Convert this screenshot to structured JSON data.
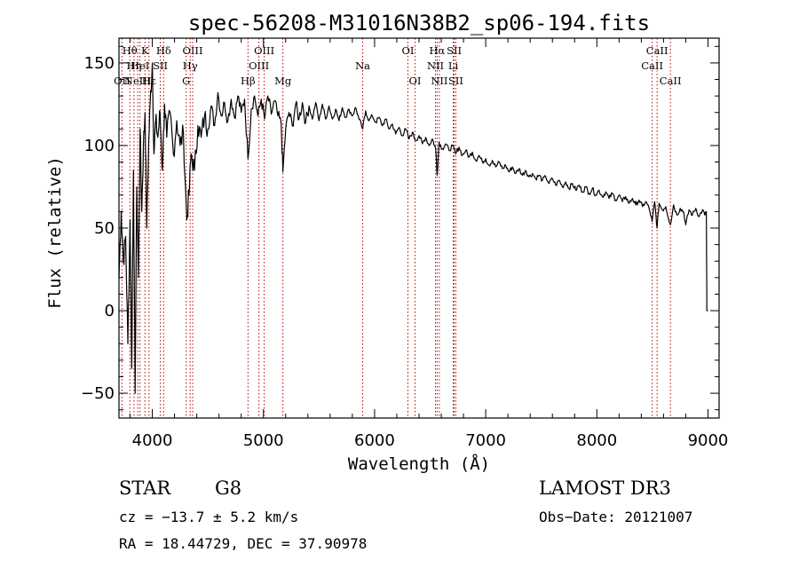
{
  "chart_data": {
    "type": "line",
    "title": "spec-56208-M31016N38B2_sp06-194.fits",
    "xlabel": "Wavelength (Å)",
    "ylabel": "Flux (relative)",
    "xlim": [
      3700,
      9100
    ],
    "ylim": [
      -65,
      165
    ],
    "xticks": [
      4000,
      5000,
      6000,
      7000,
      8000,
      9000
    ],
    "yticks": [
      -50,
      0,
      50,
      100,
      150
    ],
    "series": [
      {
        "name": "flux",
        "points": [
          [
            3700,
            20
          ],
          [
            3720,
            60
          ],
          [
            3740,
            30
          ],
          [
            3760,
            45
          ],
          [
            3780,
            -20
          ],
          [
            3800,
            55
          ],
          [
            3815,
            -35
          ],
          [
            3830,
            85
          ],
          [
            3845,
            -50
          ],
          [
            3860,
            75
          ],
          [
            3875,
            20
          ],
          [
            3890,
            110
          ],
          [
            3905,
            60
          ],
          [
            3920,
            100
          ],
          [
            3935,
            120
          ],
          [
            3950,
            50
          ],
          [
            3965,
            95
          ],
          [
            3980,
            125
          ],
          [
            4000,
            150
          ],
          [
            4015,
            95
          ],
          [
            4030,
            115
          ],
          [
            4050,
            105
          ],
          [
            4070,
            120
          ],
          [
            4090,
            85
          ],
          [
            4110,
            125
          ],
          [
            4130,
            105
          ],
          [
            4160,
            120
          ],
          [
            4190,
            95
          ],
          [
            4220,
            115
          ],
          [
            4250,
            100
          ],
          [
            4280,
            108
          ],
          [
            4310,
            55
          ],
          [
            4330,
            70
          ],
          [
            4350,
            95
          ],
          [
            4380,
            85
          ],
          [
            4410,
            112
          ],
          [
            4440,
            105
          ],
          [
            4470,
            118
          ],
          [
            4500,
            110
          ],
          [
            4530,
            124
          ],
          [
            4560,
            112
          ],
          [
            4590,
            132
          ],
          [
            4620,
            118
          ],
          [
            4650,
            126
          ],
          [
            4680,
            115
          ],
          [
            4710,
            128
          ],
          [
            4740,
            117
          ],
          [
            4770,
            130
          ],
          [
            4800,
            120
          ],
          [
            4830,
            128
          ],
          [
            4861,
            92
          ],
          [
            4890,
            122
          ],
          [
            4920,
            130
          ],
          [
            4950,
            118
          ],
          [
            4980,
            128
          ],
          [
            5010,
            116
          ],
          [
            5040,
            130
          ],
          [
            5070,
            119
          ],
          [
            5100,
            127
          ],
          [
            5130,
            118
          ],
          [
            5160,
            113
          ],
          [
            5175,
            84
          ],
          [
            5200,
            110
          ],
          [
            5230,
            120
          ],
          [
            5260,
            112
          ],
          [
            5290,
            125
          ],
          [
            5320,
            116
          ],
          [
            5350,
            126
          ],
          [
            5380,
            114
          ],
          [
            5410,
            124
          ],
          [
            5440,
            116
          ],
          [
            5470,
            126
          ],
          [
            5500,
            115
          ],
          [
            5530,
            125
          ],
          [
            5560,
            116
          ],
          [
            5590,
            124
          ],
          [
            5620,
            116
          ],
          [
            5650,
            122
          ],
          [
            5680,
            115
          ],
          [
            5710,
            123
          ],
          [
            5740,
            117
          ],
          [
            5770,
            122
          ],
          [
            5800,
            118
          ],
          [
            5830,
            123
          ],
          [
            5860,
            116
          ],
          [
            5893,
            110
          ],
          [
            5920,
            121
          ],
          [
            5950,
            115
          ],
          [
            5980,
            118
          ],
          [
            6010,
            114
          ],
          [
            6040,
            117
          ],
          [
            6070,
            112
          ],
          [
            6100,
            116
          ],
          [
            6130,
            110
          ],
          [
            6160,
            113
          ],
          [
            6190,
            107
          ],
          [
            6220,
            111
          ],
          [
            6250,
            106
          ],
          [
            6280,
            110
          ],
          [
            6310,
            104
          ],
          [
            6340,
            108
          ],
          [
            6370,
            103
          ],
          [
            6400,
            106
          ],
          [
            6430,
            101
          ],
          [
            6460,
            105
          ],
          [
            6490,
            100
          ],
          [
            6520,
            104
          ],
          [
            6550,
            98
          ],
          [
            6563,
            82
          ],
          [
            6580,
            102
          ],
          [
            6610,
            98
          ],
          [
            6640,
            101
          ],
          [
            6670,
            97
          ],
          [
            6700,
            100
          ],
          [
            6730,
            95
          ],
          [
            6760,
            99
          ],
          [
            6790,
            94
          ],
          [
            6820,
            97
          ],
          [
            6850,
            93
          ],
          [
            6880,
            96
          ],
          [
            6910,
            91
          ],
          [
            6940,
            94
          ],
          [
            6970,
            90
          ],
          [
            7000,
            92
          ],
          [
            7030,
            88
          ],
          [
            7060,
            91
          ],
          [
            7090,
            87
          ],
          [
            7120,
            90
          ],
          [
            7150,
            86
          ],
          [
            7180,
            88
          ],
          [
            7210,
            84
          ],
          [
            7240,
            87
          ],
          [
            7270,
            83
          ],
          [
            7300,
            86
          ],
          [
            7330,
            82
          ],
          [
            7360,
            85
          ],
          [
            7390,
            81
          ],
          [
            7420,
            83
          ],
          [
            7450,
            80
          ],
          [
            7480,
            82
          ],
          [
            7510,
            79
          ],
          [
            7540,
            81
          ],
          [
            7570,
            77
          ],
          [
            7600,
            80
          ],
          [
            7630,
            76
          ],
          [
            7660,
            79
          ],
          [
            7690,
            75
          ],
          [
            7720,
            78
          ],
          [
            7750,
            74
          ],
          [
            7780,
            77
          ],
          [
            7810,
            73
          ],
          [
            7840,
            76
          ],
          [
            7870,
            72
          ],
          [
            7900,
            75
          ],
          [
            7930,
            71
          ],
          [
            7960,
            74
          ],
          [
            7990,
            70
          ],
          [
            8020,
            73
          ],
          [
            8050,
            69
          ],
          [
            8080,
            72
          ],
          [
            8110,
            68
          ],
          [
            8140,
            71
          ],
          [
            8170,
            67
          ],
          [
            8200,
            70
          ],
          [
            8230,
            66
          ],
          [
            8260,
            69
          ],
          [
            8290,
            65
          ],
          [
            8320,
            68
          ],
          [
            8350,
            64
          ],
          [
            8380,
            67
          ],
          [
            8410,
            63
          ],
          [
            8440,
            66
          ],
          [
            8470,
            62
          ],
          [
            8498,
            54
          ],
          [
            8520,
            66
          ],
          [
            8542,
            50
          ],
          [
            8560,
            65
          ],
          [
            8590,
            61
          ],
          [
            8620,
            63
          ],
          [
            8662,
            52
          ],
          [
            8690,
            64
          ],
          [
            8720,
            58
          ],
          [
            8750,
            62
          ],
          [
            8780,
            60
          ],
          [
            8800,
            52
          ],
          [
            8830,
            61
          ],
          [
            8860,
            58
          ],
          [
            8890,
            62
          ],
          [
            8920,
            57
          ],
          [
            8950,
            61
          ],
          [
            8970,
            58
          ],
          [
            8985,
            60
          ],
          [
            8990,
            0
          ]
        ]
      }
    ],
    "lines": [
      {
        "w": 3727,
        "label": "OII",
        "row": 3
      },
      {
        "w": 3798,
        "label": "Hθ",
        "row": 1
      },
      {
        "w": 3835,
        "label": "Hη",
        "row": 2
      },
      {
        "w": 3869,
        "label": "NeIII",
        "row": 3
      },
      {
        "w": 3889,
        "label": "HeI",
        "row": 2
      },
      {
        "w": 3934,
        "label": "K",
        "row": 1
      },
      {
        "w": 3970,
        "label": "Hε",
        "row": 3
      },
      {
        "w": 4072,
        "label": "SII",
        "row": 2
      },
      {
        "w": 4102,
        "label": "Hδ",
        "row": 1
      },
      {
        "w": 4305,
        "label": "G",
        "row": 3
      },
      {
        "w": 4341,
        "label": "Hγ",
        "row": 2
      },
      {
        "w": 4363,
        "label": "OIII",
        "row": 1
      },
      {
        "w": 4861,
        "label": "Hβ",
        "row": 3
      },
      {
        "w": 4959,
        "label": "OIII",
        "row": 2
      },
      {
        "w": 5007,
        "label": "OIII",
        "row": 1
      },
      {
        "w": 5175,
        "label": "Mg",
        "row": 3
      },
      {
        "w": 5893,
        "label": "Na",
        "row": 2
      },
      {
        "w": 6300,
        "label": "OI",
        "row": 1
      },
      {
        "w": 6364,
        "label": "OI",
        "row": 3
      },
      {
        "w": 6548,
        "label": "NII",
        "row": 2
      },
      {
        "w": 6563,
        "label": "Hα",
        "row": 1
      },
      {
        "w": 6583,
        "label": "NII",
        "row": 3
      },
      {
        "w": 6708,
        "label": "Li",
        "row": 2
      },
      {
        "w": 6716,
        "label": "SII",
        "row": 1
      },
      {
        "w": 6731,
        "label": "SII",
        "row": 3
      },
      {
        "w": 8498,
        "label": "CaII",
        "row": 2
      },
      {
        "w": 8542,
        "label": "CaII",
        "row": 1
      },
      {
        "w": 8662,
        "label": "CaII",
        "row": 3
      }
    ]
  },
  "footer": {
    "class": "STAR",
    "subclass": "G8",
    "survey": "LAMOST DR3",
    "cz": "cz = −13.7 ± 5.2 km/s",
    "obs_date": "Obs−Date: 20121007",
    "radec": "RA =  18.44729, DEC =  37.90978"
  }
}
